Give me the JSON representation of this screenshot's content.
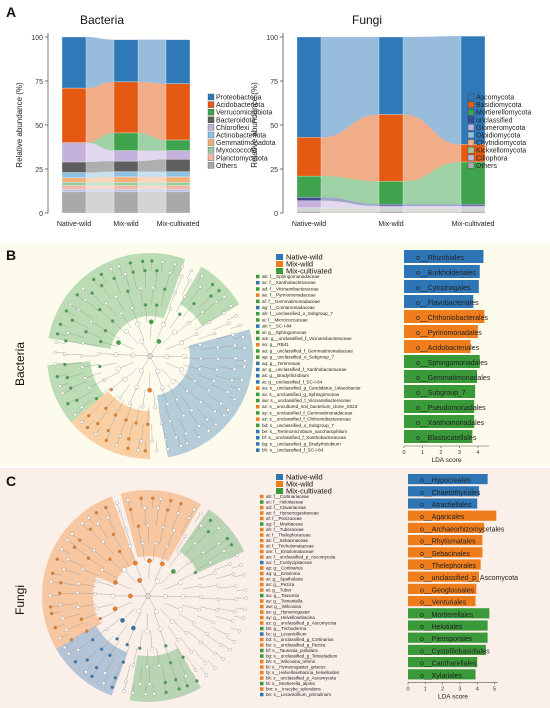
{
  "panel_labels": {
    "a": "A",
    "b": "B",
    "c": "C"
  },
  "side_labels": {
    "b": "Bacteria",
    "c": "Fungi"
  },
  "colors": {
    "bar_chart_bg_b": "#fdfbec",
    "bar_chart_bg_c": "#fbefe9",
    "native_wild": "#2e75b6",
    "mix_wild": "#f07d1c",
    "mix_cultivated": "#3a9a3a"
  },
  "chart_data": [
    {
      "type": "stacked_bar",
      "title": "Bacteria",
      "ylabel": "Relative abundance (%)",
      "ylim": [
        0,
        100
      ],
      "yticks": [
        "0",
        "25",
        "50",
        "75",
        "100"
      ],
      "categories": [
        "Native-wild",
        "Mix-wild",
        "Mix-cultivated"
      ],
      "series": [
        {
          "name": "Others",
          "color": "#a9a9a9",
          "values": [
            12,
            12,
            12
          ]
        },
        {
          "name": "Planctomycetota",
          "color": "#b4bde0",
          "values": [
            1.5,
            1.5,
            1.5
          ]
        },
        {
          "name": "Myxococcota",
          "color": "#f6b6a2",
          "values": [
            2,
            2,
            2
          ]
        },
        {
          "name": "Gemmatimonadota",
          "color": "#9bc9a0",
          "values": [
            2,
            2,
            2
          ]
        },
        {
          "name": "Actinobacteriota",
          "color": "#f5b07a",
          "values": [
            2.5,
            3,
            3
          ]
        },
        {
          "name": "Chloroflexi",
          "color": "#8fc1e2",
          "values": [
            3,
            3,
            3
          ]
        },
        {
          "name": "Bacteroidota",
          "color": "#5e5e5e",
          "values": [
            6,
            6,
            7
          ]
        },
        {
          "name": "Verrucomicrobiota",
          "color": "#c4b2dc",
          "values": [
            11,
            6,
            5
          ]
        },
        {
          "name": "Acidobacteriota",
          "color": "#3fa34d",
          "values": [
            0,
            10,
            6
          ]
        },
        {
          "name": "Proteobacteria",
          "color": "#e45a12",
          "values": [
            31,
            29,
            32
          ]
        },
        {
          "name": "Others2",
          "color": "#2f79b9",
          "values": [
            29,
            24,
            25
          ]
        }
      ],
      "legend": [
        "Proteobacteria",
        "Acidobacteriota",
        "Verrucomicrobiota",
        "Bacteroidota",
        "Chloroflexi",
        "Actinobacteriota",
        "Gemmatimonadota",
        "Myxococcota",
        "Planctomycetota",
        "Others"
      ]
    },
    {
      "type": "stacked_bar",
      "title": "Fungi",
      "ylabel": "Relative abundance (%)",
      "ylim": [
        0,
        100
      ],
      "yticks": [
        "0",
        "25",
        "50",
        "75",
        "100"
      ],
      "categories": [
        "Native-wild",
        "Mix-wild",
        "Mix-cultivated"
      ],
      "series": [
        {
          "name": "Others",
          "color": "#a9a9a9",
          "values": [
            1,
            1,
            1
          ]
        },
        {
          "name": "Ciliophora",
          "color": "#b4bde0",
          "values": [
            0.5,
            0.5,
            0.5
          ]
        },
        {
          "name": "Kickxellomycota",
          "color": "#9bc9a0",
          "values": [
            0.5,
            0.5,
            0.5
          ]
        },
        {
          "name": "Chytridiomycota",
          "color": "#f5b07a",
          "values": [
            0.5,
            0.5,
            0.5
          ]
        },
        {
          "name": "Olpidiomycota",
          "color": "#8fc1e2",
          "values": [
            0.5,
            0.5,
            0.5
          ]
        },
        {
          "name": "Glomeromycota",
          "color": "#c4b2dc",
          "values": [
            4,
            1,
            1
          ]
        },
        {
          "name": "unclassified",
          "color": "#3e4d8f",
          "values": [
            2,
            1,
            1
          ]
        },
        {
          "name": "Mortierellomycota",
          "color": "#3fa34d",
          "values": [
            12,
            13,
            24
          ]
        },
        {
          "name": "Basidiomycota",
          "color": "#e45a12",
          "values": [
            22,
            38,
            10
          ]
        },
        {
          "name": "Ascomycota",
          "color": "#2f79b9",
          "values": [
            57,
            44,
            61.5
          ]
        }
      ],
      "legend": [
        "Ascomycota",
        "Basidiomycota",
        "Mortierellomycota",
        "unclassified",
        "Glomeromycota",
        "Olpidiomycota",
        "Chytridiomycota",
        "Kickxellomycota",
        "Ciliophora",
        "Others"
      ]
    },
    {
      "type": "bar",
      "orientation": "horizontal",
      "xlabel": "LDA score",
      "xticks": [
        "0",
        "1",
        "2",
        "3",
        "4"
      ],
      "xlim": [
        0,
        4.6
      ],
      "legend": [
        "Native-wild",
        "Mix-wild",
        "Mix-cultivated"
      ],
      "categories": [
        "o__Rhizobiales",
        "o__Burkholderiales",
        "o__Cytophagales",
        "o__Flavobacteriales",
        "o__Chthoniobacterales",
        "o__Pyrinomonadales",
        "o__Acidobacteriales",
        "o__Sphingomonadales",
        "o__Gemmatimonadales",
        "o__Subgroup_7",
        "o__Pseudomonadales",
        "o__Xanthomonadales",
        "o__Blastocatellales"
      ],
      "groups": [
        "Native-wild",
        "Native-wild",
        "Native-wild",
        "Native-wild",
        "Mix-wild",
        "Mix-wild",
        "Mix-wild",
        "Mix-cultivated",
        "Mix-cultivated",
        "Mix-cultivated",
        "Mix-cultivated",
        "Mix-cultivated",
        "Mix-cultivated"
      ],
      "values": [
        4.3,
        4.1,
        4.05,
        3.75,
        4.35,
        4.0,
        3.6,
        4.1,
        3.95,
        3.85,
        3.8,
        3.8,
        3.7
      ]
    },
    {
      "type": "bar",
      "orientation": "horizontal",
      "xlabel": "LDA score",
      "xticks": [
        "0",
        "1",
        "2",
        "3",
        "4",
        "5"
      ],
      "xlim": [
        0,
        5.2
      ],
      "legend": [
        "Native-wild",
        "Mix-wild",
        "Mix-cultivated"
      ],
      "categories": [
        "o__Hypocreales",
        "o__Chaetothyriales",
        "o__Atractiellales",
        "o__Agaricales",
        "o__Archaeorhizomycetales",
        "o__Rhytismatales",
        "o__Sebacinales",
        "o__Thelephorales",
        "o__unclassified_p_Ascomycota",
        "o__Geoglossales",
        "o__Venturiales",
        "o__Mortierellales",
        "o__Helotiales",
        "o__Pleosporales",
        "o__Cystofilobasidiales",
        "o__Cantharellales",
        "o__Xylariales"
      ],
      "groups": [
        "Native-wild",
        "Native-wild",
        "Native-wild",
        "Mix-wild",
        "Mix-wild",
        "Mix-wild",
        "Mix-wild",
        "Mix-wild",
        "Mix-wild",
        "Mix-wild",
        "Mix-wild",
        "Mix-cultivated",
        "Mix-cultivated",
        "Mix-cultivated",
        "Mix-cultivated",
        "Mix-cultivated",
        "Mix-cultivated"
      ],
      "values": [
        4.6,
        4.1,
        4.0,
        5.1,
        4.4,
        4.3,
        4.3,
        4.2,
        4.1,
        3.95,
        3.9,
        4.7,
        4.6,
        4.6,
        4.5,
        4.0,
        3.9
      ]
    }
  ],
  "cladogram_b": {
    "legend": [
      "Native-wild",
      "Mix-wild",
      "Mix-cultivated"
    ],
    "list": [
      {
        "code": "ab: f__Sphingomonadaceae",
        "group": "Mix-cultivated"
      },
      {
        "code": "ac: f__Xanthobacteraceae",
        "group": "Native-wild"
      },
      {
        "code": "ad: f__Vicinamibacteraceae",
        "group": "Mix-cultivated"
      },
      {
        "code": "ae: f__Pyrinomonadaceae",
        "group": "Mix-wild"
      },
      {
        "code": "af: f__Gemmatimonadaceae",
        "group": "Mix-cultivated"
      },
      {
        "code": "ag: f__Comamonadaceae",
        "group": "Native-wild"
      },
      {
        "code": "ah: f__unclassified_o_Subgroup_7",
        "group": "Mix-cultivated"
      },
      {
        "code": "ai: f__Micrococcaceae",
        "group": "Mix-cultivated"
      },
      {
        "code": "ak: f__SC-I-84",
        "group": "Native-wild"
      },
      {
        "code": "al: g__Sphingomonas",
        "group": "Mix-cultivated"
      },
      {
        "code": "am: g__unclassified_f_Vicinamibacteraceae",
        "group": "Mix-cultivated"
      },
      {
        "code": "an: g__RB41",
        "group": "Mix-wild"
      },
      {
        "code": "ao: g__unclassified_f_Gemmatimonadaceae",
        "group": "Mix-cultivated"
      },
      {
        "code": "ap: g__unclassified_o_Subgroup_7",
        "group": "Mix-cultivated"
      },
      {
        "code": "aq: g__Terrimonas",
        "group": "Native-wild"
      },
      {
        "code": "ar: g__unclassified_f_Xanthobacteraceae",
        "group": "Native-wild"
      },
      {
        "code": "as: g__Bradyrhizobium",
        "group": "Native-wild"
      },
      {
        "code": "at: g__unclassified_f_SC-I-84",
        "group": "Native-wild"
      },
      {
        "code": "au: s__unclassified_g_Candidatus_Udaeobacter",
        "group": "Mix-wild"
      },
      {
        "code": "av: s__unclassified_g_Sphingomonas",
        "group": "Mix-cultivated"
      },
      {
        "code": "aw: s__unclassified_f_Vicinamibacteraceae",
        "group": "Mix-cultivated"
      },
      {
        "code": "ax: s__uncultured_soil_bacterium_clone_S023",
        "group": "Mix-wild"
      },
      {
        "code": "ay: s__unclassified_f_Gemmatimonadaceae",
        "group": "Mix-cultivated"
      },
      {
        "code": "az: s__unclassified_f_Chthoniobacteraceae",
        "group": "Mix-wild"
      },
      {
        "code": "bd: s__unclassified_o_Subgroup_7",
        "group": "Mix-cultivated"
      },
      {
        "code": "be: s__Terrimonicrobium_saccharophilum",
        "group": "Native-wild"
      },
      {
        "code": "bf: s__unclassified_f_Xanthobacteraceae",
        "group": "Native-wild"
      },
      {
        "code": "bg: s__unclassified_g_Bradyrhizobium",
        "group": "Native-wild"
      },
      {
        "code": "bh: s__unclassified_f_SC-I-84",
        "group": "Native-wild"
      }
    ]
  },
  "cladogram_c": {
    "legend": [
      "Native-wild",
      "Mix-wild",
      "Mix-cultivated"
    ],
    "list": [
      {
        "code": "ab: f__Cortinariaceae",
        "group": "Mix-wild"
      },
      {
        "code": "ac: f__Helotiaceae",
        "group": "Mix-cultivated"
      },
      {
        "code": "ad: f__Clavariaceae",
        "group": "Mix-wild"
      },
      {
        "code": "ae: f__Hymenogastraceae",
        "group": "Mix-wild"
      },
      {
        "code": "af: f__Pezizaceae",
        "group": "Mix-wild"
      },
      {
        "code": "ag: f__Mrakiaceae",
        "group": "Mix-cultivated"
      },
      {
        "code": "ah: f__Tuberaceae",
        "group": "Mix-wild"
      },
      {
        "code": "ai: f__Thelephoraceae",
        "group": "Mix-wild"
      },
      {
        "code": "ak: f__Sebacinaceae",
        "group": "Mix-wild"
      },
      {
        "code": "al: f__Tricholomataceae",
        "group": "Mix-wild"
      },
      {
        "code": "am: f__Entolomataceae",
        "group": "Mix-wild"
      },
      {
        "code": "an: f__unclassified_p_Ascomycota",
        "group": "Mix-wild"
      },
      {
        "code": "ao: f__Cordycipitaceae",
        "group": "Native-wild"
      },
      {
        "code": "ap: g__Cortinarius",
        "group": "Mix-wild"
      },
      {
        "code": "aq: g__Entoloma",
        "group": "Mix-wild"
      },
      {
        "code": "ar: g__Spathularia",
        "group": "Mix-wild"
      },
      {
        "code": "as: g__Peziza",
        "group": "Mix-wild"
      },
      {
        "code": "at: g__Tuber",
        "group": "Mix-wild"
      },
      {
        "code": "au: g__Tausonia",
        "group": "Mix-cultivated"
      },
      {
        "code": "av: g__Tomentella",
        "group": "Mix-wild"
      },
      {
        "code": "aw: g__Wilcoxina",
        "group": "Mix-wild"
      },
      {
        "code": "ax: g__Hymenogaster",
        "group": "Mix-wild"
      },
      {
        "code": "ay: g__Helvellosebacina",
        "group": "Mix-wild"
      },
      {
        "code": "az: g__unclassified_p_Ascomycota",
        "group": "Mix-wild"
      },
      {
        "code": "bb: g__Trichoderma",
        "group": "Mix-cultivated"
      },
      {
        "code": "bc: g__Lecanicillium",
        "group": "Native-wild"
      },
      {
        "code": "bd: s__unclassified_g_Cortinarius",
        "group": "Mix-wild"
      },
      {
        "code": "be: s__unclassified_g_Peziza",
        "group": "Mix-wild"
      },
      {
        "code": "bf: s__Tausonia_pullulans",
        "group": "Mix-cultivated"
      },
      {
        "code": "bg: s__unclassified_g_Tetracladium",
        "group": "Mix-cultivated"
      },
      {
        "code": "bh: s__Wilcoxina_rehmii",
        "group": "Mix-wild"
      },
      {
        "code": "bi: s__Hymenogaster_griseus",
        "group": "Mix-wild"
      },
      {
        "code": "bj: s__Helvellosebacina_helvelloides",
        "group": "Mix-wild"
      },
      {
        "code": "bk: s__unclassified_p_Ascomycota",
        "group": "Mix-wild"
      },
      {
        "code": "bl: s__Mortierella_alpina",
        "group": "Mix-cultivated"
      },
      {
        "code": "bm: s__Inocybe_splendens",
        "group": "Mix-wild"
      },
      {
        "code": "bn: s__Lecanicillium_primulinum",
        "group": "Native-wild"
      }
    ]
  }
}
